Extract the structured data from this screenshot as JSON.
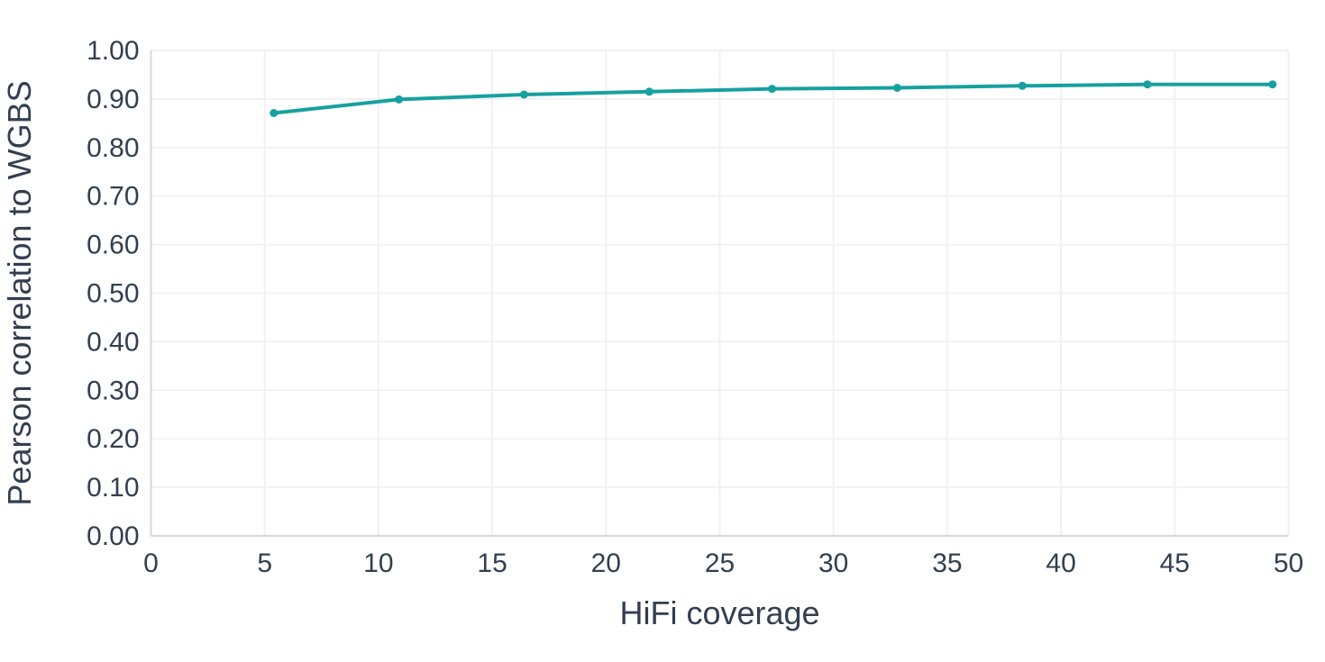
{
  "chart_data": {
    "type": "line",
    "title": "",
    "xlabel": "HiFi coverage",
    "ylabel": "Pearson correlation to WGBS",
    "xlim": [
      0,
      50
    ],
    "ylim": [
      0.0,
      1.0
    ],
    "xticks": [
      0,
      5,
      10,
      15,
      20,
      25,
      30,
      35,
      40,
      45,
      50
    ],
    "xtick_labels": [
      "0",
      "5",
      "10",
      "15",
      "20",
      "25",
      "30",
      "35",
      "40",
      "45",
      "50"
    ],
    "yticks": [
      0.0,
      0.1,
      0.2,
      0.3,
      0.4,
      0.5,
      0.6,
      0.7,
      0.8,
      0.9,
      1.0
    ],
    "ytick_labels": [
      "0.00",
      "0.10",
      "0.20",
      "0.30",
      "0.40",
      "0.50",
      "0.60",
      "0.70",
      "0.80",
      "0.90",
      "1.00"
    ],
    "grid": true,
    "legend": false,
    "series": [
      {
        "name": "Pearson correlation to WGBS",
        "x": [
          5.4,
          10.9,
          16.4,
          21.9,
          27.3,
          32.8,
          38.3,
          43.8,
          49.3
        ],
        "y": [
          0.871,
          0.899,
          0.909,
          0.915,
          0.921,
          0.923,
          0.927,
          0.93,
          0.93
        ],
        "color": "#17A0A0",
        "marker": "circle"
      }
    ]
  },
  "colors": {
    "accent_teal": "#17A0A0",
    "text": "#333F50",
    "gridline": "#F1F1F5",
    "axis_line": "#D6D6E2",
    "background": "#FFFFFF"
  }
}
